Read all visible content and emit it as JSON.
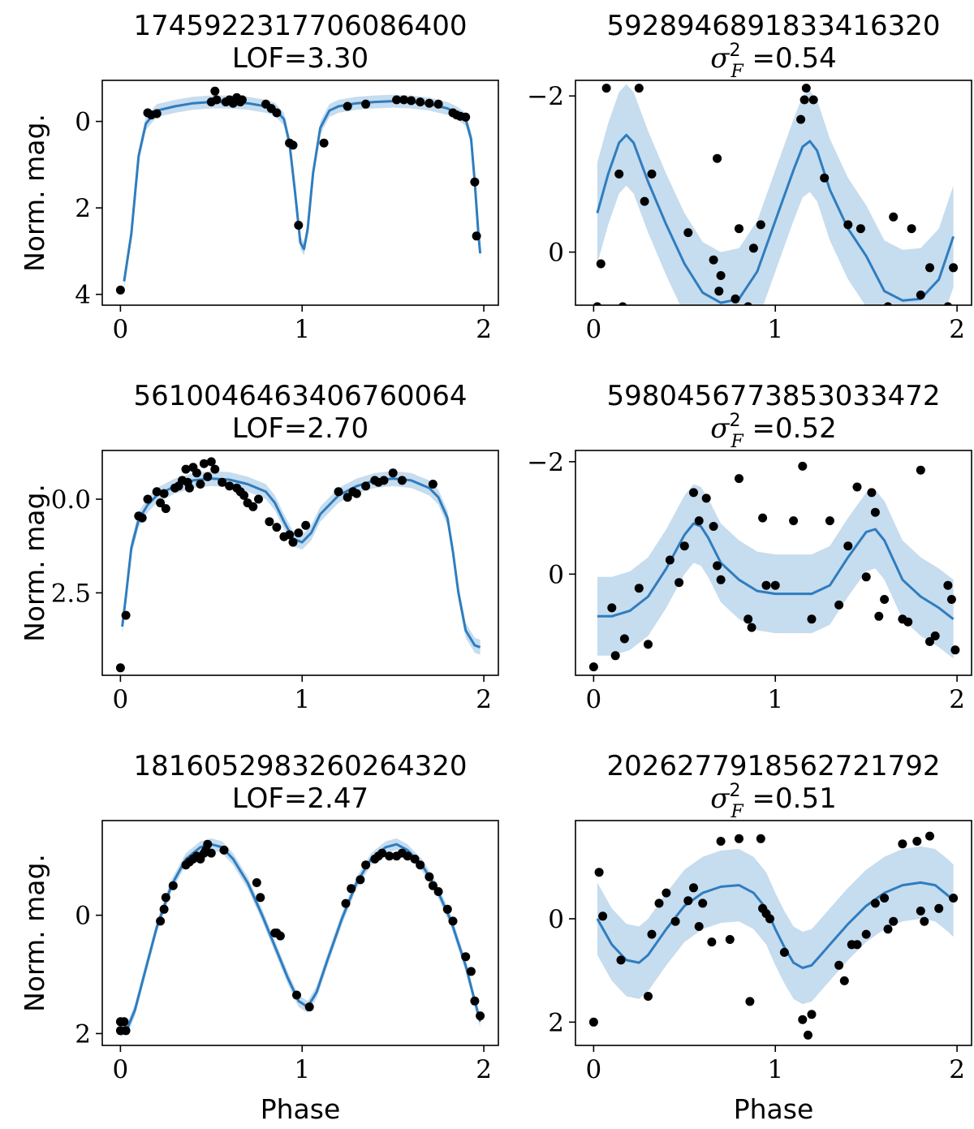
{
  "figure": {
    "colors": {
      "line": "#2e7dbf",
      "band": "#c6dcef",
      "points": "#000000"
    }
  },
  "chart_data": [
    {
      "type": "line",
      "title": "1745922317706086400",
      "subtitle": "LOF=3.30",
      "xlabel": "",
      "ylabel": "Norm. mag.",
      "xlim": [
        -0.1,
        2.08
      ],
      "ylim": [
        4.25,
        -0.95
      ],
      "y_inverted": true,
      "xticks": [
        0,
        1,
        2
      ],
      "yticks": [
        0,
        2,
        4
      ],
      "ytick_labels": [
        "0",
        "2",
        "4"
      ],
      "series": [
        {
          "kind": "fit_line_with_band",
          "x": [
            0.02,
            0.06,
            0.1,
            0.14,
            0.2,
            0.3,
            0.4,
            0.5,
            0.6,
            0.7,
            0.8,
            0.85,
            0.9,
            0.93,
            0.96,
            0.99,
            1.01,
            1.03,
            1.06,
            1.1,
            1.15,
            1.2,
            1.3,
            1.4,
            1.5,
            1.6,
            1.7,
            1.8,
            1.85,
            1.9,
            1.93,
            1.95,
            1.97,
            1.98
          ],
          "y": [
            3.7,
            2.6,
            0.8,
            0.05,
            -0.25,
            -0.35,
            -0.42,
            -0.45,
            -0.45,
            -0.42,
            -0.35,
            -0.28,
            -0.05,
            0.5,
            1.6,
            2.8,
            2.95,
            2.5,
            1.2,
            0.15,
            -0.25,
            -0.35,
            -0.42,
            -0.45,
            -0.47,
            -0.45,
            -0.4,
            -0.3,
            -0.2,
            -0.05,
            0.4,
            1.4,
            2.6,
            3.05
          ],
          "band": 0.15
        },
        {
          "kind": "observations",
          "x": [
            0.0,
            0.15,
            0.17,
            0.2,
            0.5,
            0.52,
            0.53,
            0.58,
            0.6,
            0.62,
            0.64,
            0.66,
            0.67,
            0.8,
            0.83,
            0.86,
            0.93,
            0.95,
            0.98,
            1.12,
            1.25,
            1.35,
            1.52,
            1.56,
            1.6,
            1.65,
            1.7,
            1.75,
            1.83,
            1.85,
            1.87,
            1.9,
            1.95,
            1.96
          ],
          "y": [
            3.9,
            -0.2,
            -0.15,
            -0.18,
            -0.45,
            -0.7,
            -0.5,
            -0.45,
            -0.5,
            -0.42,
            -0.55,
            -0.45,
            -0.5,
            -0.4,
            -0.3,
            -0.2,
            0.5,
            0.55,
            2.4,
            0.5,
            -0.35,
            -0.4,
            -0.5,
            -0.5,
            -0.48,
            -0.45,
            -0.42,
            -0.4,
            -0.2,
            -0.15,
            -0.12,
            -0.1,
            1.4,
            2.65
          ]
        }
      ]
    },
    {
      "type": "line",
      "title": "5928946891833416320",
      "subtitle": "σ²_F =0.54",
      "xlabel": "",
      "ylabel": "",
      "xlim": [
        -0.1,
        2.08
      ],
      "ylim": [
        0.68,
        -2.2
      ],
      "y_inverted": true,
      "xticks": [
        0,
        1,
        2
      ],
      "yticks": [
        -2,
        0
      ],
      "ytick_labels": [
        "−2",
        "0"
      ],
      "series": [
        {
          "kind": "fit_line_with_band",
          "x": [
            0.02,
            0.08,
            0.14,
            0.18,
            0.22,
            0.3,
            0.4,
            0.5,
            0.6,
            0.7,
            0.8,
            0.9,
            1.0,
            1.1,
            1.15,
            1.19,
            1.23,
            1.3,
            1.4,
            1.5,
            1.6,
            1.7,
            1.8,
            1.9,
            1.98
          ],
          "y": [
            -0.5,
            -1.0,
            -1.4,
            -1.5,
            -1.4,
            -0.9,
            -0.35,
            0.15,
            0.52,
            0.65,
            0.6,
            0.25,
            -0.4,
            -1.05,
            -1.35,
            -1.42,
            -1.3,
            -0.8,
            -0.3,
            0.05,
            0.5,
            0.62,
            0.6,
            0.35,
            -0.2
          ],
          "band": 0.65
        },
        {
          "kind": "observations",
          "x": [
            0.0,
            0.02,
            0.04,
            0.07,
            0.14,
            0.16,
            0.25,
            0.28,
            0.32,
            0.52,
            0.58,
            0.62,
            0.66,
            0.68,
            0.69,
            0.7,
            0.73,
            0.75,
            0.78,
            0.8,
            0.85,
            0.88,
            0.92,
            1.14,
            1.16,
            1.17,
            1.21,
            1.27,
            1.4,
            1.47,
            1.48,
            1.56,
            1.6,
            1.62,
            1.65,
            1.7,
            1.75,
            1.8,
            1.85,
            1.92,
            1.95,
            1.98
          ],
          "y": [
            1.2,
            0.7,
            0.15,
            -2.1,
            -1.0,
            0.7,
            -2.1,
            -0.65,
            -1.0,
            -0.25,
            1.1,
            1.15,
            0.1,
            -1.2,
            0.5,
            0.3,
            1.15,
            0.8,
            0.6,
            -0.3,
            0.7,
            -0.05,
            -0.35,
            -1.7,
            -1.95,
            -2.1,
            -1.95,
            -0.95,
            -0.35,
            -0.3,
            0.8,
            0.75,
            0.75,
            0.7,
            -0.45,
            1.05,
            -0.3,
            0.55,
            0.2,
            0.95,
            0.7,
            0.2
          ]
        }
      ]
    },
    {
      "type": "line",
      "title": "5610046463406760064",
      "subtitle": "LOF=2.70",
      "xlabel": "",
      "ylabel": "Norm. mag.",
      "xlim": [
        -0.1,
        2.08
      ],
      "ylim": [
        4.7,
        -1.3
      ],
      "y_inverted": true,
      "xticks": [
        0,
        1,
        2
      ],
      "yticks": [
        0.0,
        2.5
      ],
      "ytick_labels": [
        "0.0",
        "2.5"
      ],
      "series": [
        {
          "kind": "fit_line_with_band",
          "x": [
            0.01,
            0.03,
            0.06,
            0.1,
            0.15,
            0.2,
            0.3,
            0.4,
            0.5,
            0.6,
            0.7,
            0.8,
            0.85,
            0.9,
            0.95,
            1.0,
            1.05,
            1.1,
            1.2,
            1.3,
            1.4,
            1.5,
            1.6,
            1.7,
            1.75,
            1.8,
            1.83,
            1.86,
            1.9,
            1.95,
            1.98
          ],
          "y": [
            3.4,
            2.6,
            1.3,
            0.55,
            0.15,
            -0.1,
            -0.35,
            -0.5,
            -0.55,
            -0.52,
            -0.4,
            -0.2,
            0.1,
            0.6,
            1.05,
            1.15,
            0.9,
            0.4,
            -0.1,
            -0.35,
            -0.5,
            -0.55,
            -0.5,
            -0.3,
            -0.05,
            0.5,
            1.4,
            2.5,
            3.5,
            3.9,
            3.95
          ],
          "band": 0.2
        },
        {
          "kind": "observations",
          "x": [
            0.0,
            0.03,
            0.1,
            0.12,
            0.15,
            0.2,
            0.22,
            0.24,
            0.25,
            0.3,
            0.32,
            0.34,
            0.36,
            0.37,
            0.38,
            0.4,
            0.42,
            0.44,
            0.46,
            0.48,
            0.5,
            0.52,
            0.56,
            0.6,
            0.64,
            0.66,
            0.68,
            0.7,
            0.73,
            0.76,
            0.82,
            0.86,
            0.9,
            0.93,
            0.95,
            0.98,
            1.02,
            1.2,
            1.25,
            1.28,
            1.3,
            1.35,
            1.4,
            1.42,
            1.45,
            1.5,
            1.55,
            1.72
          ],
          "y": [
            4.5,
            3.1,
            0.45,
            0.5,
            0.0,
            -0.2,
            0.1,
            -0.15,
            0.25,
            -0.3,
            -0.35,
            -0.5,
            -0.8,
            -0.45,
            -0.3,
            -0.85,
            -0.7,
            -0.4,
            -0.95,
            -0.6,
            -1.0,
            -0.8,
            -0.45,
            -0.35,
            -0.3,
            -0.2,
            -0.1,
            0.1,
            0.2,
            0.0,
            0.6,
            0.75,
            1.0,
            0.95,
            1.15,
            0.9,
            0.7,
            -0.2,
            -0.05,
            -0.2,
            -0.15,
            -0.35,
            -0.5,
            -0.45,
            -0.5,
            -0.7,
            -0.5,
            -0.4
          ]
        }
      ]
    },
    {
      "type": "line",
      "title": "5980456773853033472",
      "subtitle": "σ²_F =0.52",
      "xlabel": "",
      "ylabel": "",
      "xlim": [
        -0.1,
        2.08
      ],
      "ylim": [
        1.8,
        -2.2
      ],
      "y_inverted": true,
      "xticks": [
        0,
        1,
        2
      ],
      "yticks": [
        -2,
        0
      ],
      "ytick_labels": [
        "−2",
        "0"
      ],
      "series": [
        {
          "kind": "fit_line_with_band",
          "x": [
            0.02,
            0.1,
            0.2,
            0.3,
            0.4,
            0.5,
            0.55,
            0.59,
            0.63,
            0.7,
            0.8,
            0.9,
            1.0,
            1.1,
            1.2,
            1.3,
            1.4,
            1.5,
            1.55,
            1.6,
            1.7,
            1.8,
            1.9,
            1.98
          ],
          "y": [
            0.75,
            0.75,
            0.65,
            0.4,
            -0.1,
            -0.7,
            -0.9,
            -0.85,
            -0.65,
            -0.2,
            0.1,
            0.3,
            0.35,
            0.35,
            0.35,
            0.2,
            -0.3,
            -0.75,
            -0.8,
            -0.6,
            0.1,
            0.4,
            0.6,
            0.8
          ],
          "band": 0.7
        },
        {
          "kind": "observations",
          "x": [
            0.0,
            0.1,
            0.12,
            0.17,
            0.25,
            0.3,
            0.42,
            0.47,
            0.5,
            0.55,
            0.58,
            0.62,
            0.66,
            0.68,
            0.7,
            0.8,
            0.85,
            0.87,
            0.93,
            0.95,
            1.0,
            1.1,
            1.15,
            1.2,
            1.3,
            1.35,
            1.4,
            1.45,
            1.5,
            1.53,
            1.55,
            1.57,
            1.6,
            1.7,
            1.73,
            1.8,
            1.85,
            1.88,
            1.95,
            1.97,
            1.99
          ],
          "y": [
            1.65,
            0.6,
            1.45,
            1.15,
            0.25,
            1.25,
            -0.25,
            0.15,
            -0.5,
            -1.45,
            -0.95,
            -1.35,
            -0.85,
            -0.15,
            0.1,
            -1.7,
            0.8,
            0.95,
            -1.0,
            0.2,
            0.2,
            -0.95,
            -1.92,
            0.8,
            -0.95,
            0.55,
            -0.5,
            -1.55,
            0.05,
            -1.45,
            -1.1,
            0.75,
            0.45,
            0.8,
            0.85,
            -1.85,
            1.2,
            1.1,
            0.2,
            0.45,
            1.35
          ]
        }
      ]
    },
    {
      "type": "line",
      "title": "1816052983260264320",
      "subtitle": "LOF=2.47",
      "xlabel": "Phase",
      "ylabel": "Norm. mag.",
      "xlim": [
        -0.1,
        2.08
      ],
      "ylim": [
        2.2,
        -1.6
      ],
      "y_inverted": true,
      "xticks": [
        0,
        1,
        2
      ],
      "yticks": [
        0,
        2
      ],
      "ytick_labels": [
        "0",
        "2"
      ],
      "series": [
        {
          "kind": "fit_line_with_band",
          "x": [
            0.0,
            0.04,
            0.08,
            0.14,
            0.2,
            0.28,
            0.36,
            0.44,
            0.5,
            0.56,
            0.62,
            0.7,
            0.78,
            0.86,
            0.92,
            0.98,
            1.03,
            1.08,
            1.14,
            1.22,
            1.3,
            1.38,
            1.46,
            1.52,
            1.58,
            1.66,
            1.74,
            1.82,
            1.9,
            1.95,
            1.98
          ],
          "y": [
            1.95,
            1.9,
            1.6,
            0.9,
            0.2,
            -0.5,
            -0.95,
            -1.15,
            -1.2,
            -1.15,
            -0.95,
            -0.55,
            0.0,
            0.6,
            1.05,
            1.45,
            1.55,
            1.3,
            0.75,
            0.05,
            -0.55,
            -0.95,
            -1.15,
            -1.2,
            -1.1,
            -0.85,
            -0.45,
            0.1,
            0.85,
            1.45,
            1.8
          ],
          "band": 0.1
        },
        {
          "kind": "observations",
          "x": [
            0.0,
            0.0,
            0.02,
            0.03,
            0.22,
            0.24,
            0.25,
            0.29,
            0.36,
            0.38,
            0.4,
            0.42,
            0.44,
            0.46,
            0.47,
            0.48,
            0.5,
            0.57,
            0.75,
            0.77,
            0.85,
            0.86,
            0.88,
            0.97,
            1.04,
            1.24,
            1.27,
            1.32,
            1.35,
            1.4,
            1.42,
            1.44,
            1.48,
            1.52,
            1.55,
            1.58,
            1.62,
            1.65,
            1.7,
            1.72,
            1.75,
            1.8,
            1.83,
            1.9,
            1.93,
            1.95,
            1.98
          ],
          "y": [
            1.8,
            1.95,
            1.8,
            1.95,
            0.1,
            -0.1,
            -0.3,
            -0.5,
            -0.85,
            -0.9,
            -0.95,
            -1.0,
            -0.95,
            -1.05,
            -1.1,
            -1.2,
            -1.05,
            -1.1,
            -0.55,
            -0.3,
            0.3,
            0.3,
            0.35,
            1.35,
            1.55,
            -0.2,
            -0.45,
            -0.6,
            -0.85,
            -0.95,
            -1.0,
            -1.05,
            -1.0,
            -1.0,
            -1.05,
            -1.0,
            -0.95,
            -0.85,
            -0.65,
            -0.5,
            -0.4,
            -0.1,
            0.1,
            0.7,
            0.95,
            1.45,
            1.7
          ]
        }
      ]
    },
    {
      "type": "line",
      "title": "2026277918562721792",
      "subtitle": "σ²_F =0.51",
      "xlabel": "Phase",
      "ylabel": "",
      "xlim": [
        -0.1,
        2.08
      ],
      "ylim": [
        2.45,
        -1.9
      ],
      "y_inverted": true,
      "xticks": [
        0,
        1,
        2
      ],
      "yticks": [
        0,
        2
      ],
      "ytick_labels": [
        "0",
        "2"
      ],
      "series": [
        {
          "kind": "fit_line_with_band",
          "x": [
            0.02,
            0.1,
            0.18,
            0.25,
            0.3,
            0.4,
            0.5,
            0.6,
            0.7,
            0.8,
            0.88,
            0.95,
            1.0,
            1.05,
            1.1,
            1.15,
            1.2,
            1.25,
            1.3,
            1.4,
            1.5,
            1.6,
            1.7,
            1.8,
            1.88,
            1.95,
            1.98
          ],
          "y": [
            0.0,
            0.5,
            0.8,
            0.85,
            0.7,
            0.2,
            -0.25,
            -0.5,
            -0.62,
            -0.65,
            -0.5,
            -0.2,
            0.2,
            0.55,
            0.85,
            0.95,
            0.9,
            0.7,
            0.5,
            0.1,
            -0.25,
            -0.5,
            -0.65,
            -0.7,
            -0.65,
            -0.45,
            -0.35
          ],
          "band": 0.7
        },
        {
          "kind": "observations",
          "x": [
            0.0,
            0.03,
            0.05,
            0.15,
            0.3,
            0.32,
            0.36,
            0.4,
            0.45,
            0.52,
            0.55,
            0.58,
            0.6,
            0.65,
            0.7,
            0.75,
            0.8,
            0.86,
            0.92,
            0.93,
            0.95,
            0.97,
            1.05,
            1.15,
            1.18,
            1.2,
            1.35,
            1.38,
            1.42,
            1.45,
            1.5,
            1.55,
            1.6,
            1.62,
            1.65,
            1.7,
            1.78,
            1.8,
            1.82,
            1.85,
            1.9,
            1.98
          ],
          "y": [
            2.0,
            -0.9,
            -0.05,
            0.8,
            1.5,
            0.3,
            -0.3,
            -0.5,
            0.05,
            -0.35,
            -0.6,
            0.15,
            -0.3,
            0.45,
            -1.5,
            0.4,
            -1.55,
            1.6,
            -1.55,
            -0.2,
            -0.1,
            0.0,
            0.65,
            1.95,
            2.25,
            1.85,
            0.9,
            1.2,
            0.5,
            0.5,
            0.3,
            -0.3,
            -0.4,
            0.2,
            0.05,
            -1.45,
            -1.5,
            -0.15,
            0.05,
            -1.6,
            -0.2,
            -0.4
          ]
        }
      ]
    }
  ]
}
